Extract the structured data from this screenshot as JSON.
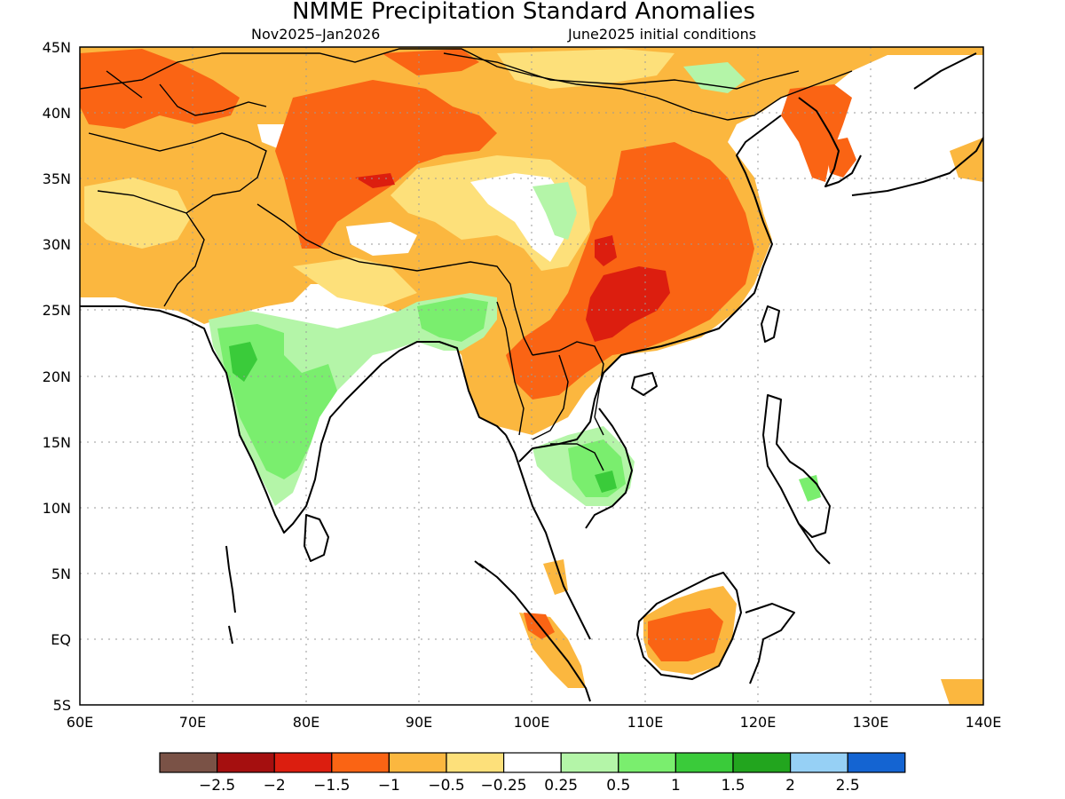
{
  "title": "NMME Precipitation Standard Anomalies",
  "subtitle_left": "Nov2025–Jan2026",
  "subtitle_right": "June2025 initial conditions",
  "axes": {
    "lon_labels": [
      "60E",
      "70E",
      "80E",
      "90E",
      "100E",
      "110E",
      "120E",
      "130E",
      "140E"
    ],
    "lat_labels": [
      "45N",
      "40N",
      "35N",
      "30N",
      "25N",
      "20N",
      "15N",
      "10N",
      "5N",
      "EQ",
      "5S"
    ]
  },
  "colorbar": {
    "colors": [
      "#7a5246",
      "#a50f0f",
      "#dc1e0f",
      "#fa6414",
      "#fbb73f",
      "#fde07a",
      "#ffffff",
      "#b4f5a8",
      "#7aee6e",
      "#3acb3a",
      "#22a51e",
      "#96d0f5",
      "#1464d2"
    ],
    "labels": [
      "−2.5",
      "−2",
      "−1.5",
      "−1",
      "−0.5",
      "−0.25",
      "0.25",
      "0.5",
      "1",
      "1.5",
      "2",
      "2.5"
    ]
  },
  "map_colors": {
    "strong_dry": "#fa6414",
    "moderate_dry": "#fbb73f",
    "weak_dry": "#fde07a",
    "neutral": "#ffffff",
    "weak_wet": "#b4f5a8",
    "moderate_wet": "#7aee6e",
    "strong_wet": "#3acb3a",
    "very_dry": "#dc1e0f"
  }
}
